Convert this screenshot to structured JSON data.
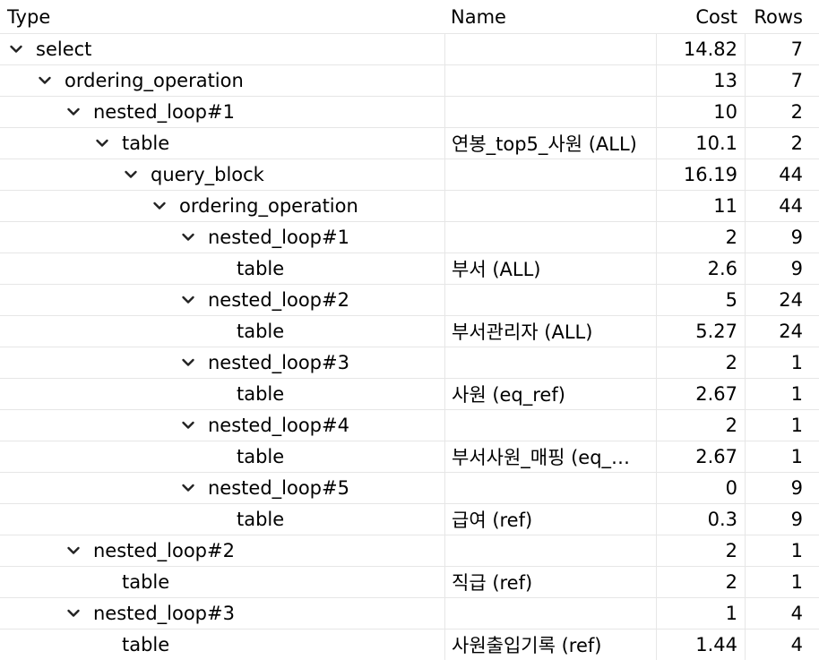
{
  "columns": {
    "type": "Type",
    "name": "Name",
    "cost": "Cost",
    "rows": "Rows"
  },
  "rows": [
    {
      "type": "select",
      "name": "",
      "cost": "14.82",
      "rows": "7",
      "depth": 0,
      "expandable": true
    },
    {
      "type": "ordering_operation",
      "name": "",
      "cost": "13",
      "rows": "7",
      "depth": 1,
      "expandable": true
    },
    {
      "type": "nested_loop#1",
      "name": "",
      "cost": "10",
      "rows": "2",
      "depth": 2,
      "expandable": true
    },
    {
      "type": "table",
      "name": "연봉_top5_사원 (ALL)",
      "cost": "10.1",
      "rows": "2",
      "depth": 3,
      "expandable": true
    },
    {
      "type": "query_block",
      "name": "",
      "cost": "16.19",
      "rows": "44",
      "depth": 4,
      "expandable": true
    },
    {
      "type": "ordering_operation",
      "name": "",
      "cost": "11",
      "rows": "44",
      "depth": 5,
      "expandable": true
    },
    {
      "type": "nested_loop#1",
      "name": "",
      "cost": "2",
      "rows": "9",
      "depth": 6,
      "expandable": true
    },
    {
      "type": "table",
      "name": "부서 (ALL)",
      "cost": "2.6",
      "rows": "9",
      "depth": 7,
      "expandable": false
    },
    {
      "type": "nested_loop#2",
      "name": "",
      "cost": "5",
      "rows": "24",
      "depth": 6,
      "expandable": true
    },
    {
      "type": "table",
      "name": "부서관리자 (ALL)",
      "cost": "5.27",
      "rows": "24",
      "depth": 7,
      "expandable": false
    },
    {
      "type": "nested_loop#3",
      "name": "",
      "cost": "2",
      "rows": "1",
      "depth": 6,
      "expandable": true
    },
    {
      "type": "table",
      "name": "사원 (eq_ref)",
      "cost": "2.67",
      "rows": "1",
      "depth": 7,
      "expandable": false
    },
    {
      "type": "nested_loop#4",
      "name": "",
      "cost": "2",
      "rows": "1",
      "depth": 6,
      "expandable": true
    },
    {
      "type": "table",
      "name": "부서사원_매핑 (eq_…",
      "cost": "2.67",
      "rows": "1",
      "depth": 7,
      "expandable": false
    },
    {
      "type": "nested_loop#5",
      "name": "",
      "cost": "0",
      "rows": "9",
      "depth": 6,
      "expandable": true
    },
    {
      "type": "table",
      "name": "급여 (ref)",
      "cost": "0.3",
      "rows": "9",
      "depth": 7,
      "expandable": false
    },
    {
      "type": "nested_loop#2",
      "name": "",
      "cost": "2",
      "rows": "1",
      "depth": 2,
      "expandable": true
    },
    {
      "type": "table",
      "name": "직급 (ref)",
      "cost": "2",
      "rows": "1",
      "depth": 3,
      "expandable": false
    },
    {
      "type": "nested_loop#3",
      "name": "",
      "cost": "1",
      "rows": "4",
      "depth": 2,
      "expandable": true
    },
    {
      "type": "table",
      "name": "사원출입기록 (ref)",
      "cost": "1.44",
      "rows": "4",
      "depth": 3,
      "expandable": false
    }
  ],
  "icons": {
    "expanded": "chevron-down-icon"
  },
  "colors": {
    "grid": "#e6e6e6",
    "text": "#000000",
    "background": "#ffffff"
  }
}
